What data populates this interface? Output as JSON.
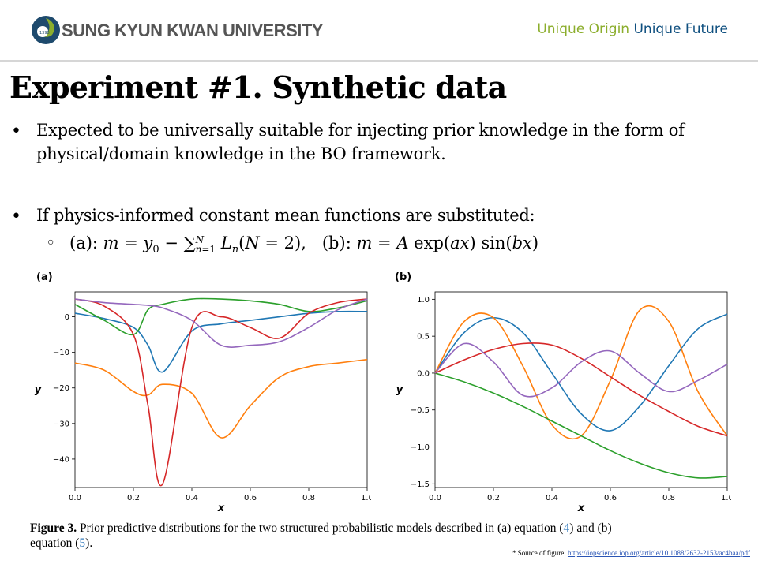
{
  "header": {
    "university": "SUNG KYUN KWAN UNIVERSITY",
    "logo_year": "1398",
    "slogan_part1": "Unique Origin",
    "slogan_part2": "Unique Future",
    "accent_green": "#8cae2d",
    "accent_blue": "#0e4f7f"
  },
  "title": "Experiment #1. Synthetic data",
  "bullets": [
    {
      "line1": "Expected to be universally suitable for injecting prior knowledge in the form of",
      "line2": "physical/domain knowledge in the BO framework."
    },
    {
      "line1": "If physics-informed constant mean functions are substituted:"
    }
  ],
  "sub_bullet": {
    "a_prefix": "(a): ",
    "b_prefix": "(b): "
  },
  "figure": {
    "panel_a_label": "(a)",
    "panel_b_label": "(b)",
    "caption_label": "Figure 3.",
    "caption_text_1": " Prior predictive distributions for the two structured probabilistic models described in (a) equation (",
    "caption_ref_4": "4",
    "caption_text_2": ") and (b)",
    "caption_text_3": "equation (",
    "caption_ref_5": "5",
    "caption_text_4": ")."
  },
  "source": {
    "prefix": "* Source of figure: ",
    "link": "https://iopscience.iop.org/article/10.1088/2632-2153/ac4baa/pdf"
  },
  "chart_data": [
    {
      "type": "line",
      "xlabel": "x",
      "ylabel": "y",
      "xlim": [
        0.0,
        1.0
      ],
      "ylim": [
        -48,
        7
      ],
      "xticks": [
        "0.0",
        "0.2",
        "0.4",
        "0.6",
        "0.8",
        "1.0"
      ],
      "yticks": [
        "0",
        "−10",
        "−20",
        "−30",
        "−40"
      ],
      "ytick_values": [
        0,
        -10,
        -20,
        -30,
        -40
      ],
      "x": [
        0.0,
        0.1,
        0.2,
        0.25,
        0.3,
        0.4,
        0.5,
        0.6,
        0.7,
        0.8,
        0.9,
        1.0
      ],
      "series": [
        {
          "color": "#1f77b4",
          "values": [
            1,
            -0.5,
            -3,
            -8,
            -15.5,
            -4,
            -2,
            -1,
            0,
            1,
            1.5,
            1.5
          ]
        },
        {
          "color": "#ff7f0e",
          "values": [
            -13,
            -15,
            -21,
            -22,
            -19,
            -21.5,
            -34,
            -25,
            -17,
            -14,
            -13,
            -12
          ]
        },
        {
          "color": "#2ca02c",
          "values": [
            3.5,
            -1,
            -5,
            2,
            3.5,
            5,
            5,
            4.5,
            3.5,
            1.5,
            2.5,
            4.5
          ]
        },
        {
          "color": "#d62728",
          "values": [
            5,
            3,
            -5,
            -25,
            -47,
            -3,
            0,
            -3,
            -6,
            1,
            4,
            5
          ]
        },
        {
          "color": "#9467bd",
          "values": [
            5,
            4,
            3.5,
            3.2,
            2.5,
            -1,
            -8,
            -8,
            -7,
            -3,
            2,
            5
          ]
        }
      ]
    },
    {
      "type": "line",
      "xlabel": "x",
      "ylabel": "y",
      "xlim": [
        0.0,
        1.0
      ],
      "ylim": [
        -1.55,
        1.1
      ],
      "xticks": [
        "0.0",
        "0.2",
        "0.4",
        "0.6",
        "0.8",
        "1.0"
      ],
      "yticks": [
        "1.0",
        "0.5",
        "0.0",
        "−0.5",
        "−1.0",
        "−1.5"
      ],
      "ytick_values": [
        1.0,
        0.5,
        0.0,
        -0.5,
        -1.0,
        -1.5
      ],
      "x": [
        0.0,
        0.1,
        0.2,
        0.3,
        0.4,
        0.5,
        0.6,
        0.7,
        0.8,
        0.9,
        1.0
      ],
      "series": [
        {
          "color": "#1f77b4",
          "values": [
            0,
            0.55,
            0.75,
            0.55,
            0.0,
            -0.55,
            -0.78,
            -0.45,
            0.1,
            0.6,
            0.8
          ]
        },
        {
          "color": "#ff7f0e",
          "values": [
            0,
            0.7,
            0.75,
            0.1,
            -0.7,
            -0.85,
            -0.1,
            0.85,
            0.7,
            -0.25,
            -0.85
          ]
        },
        {
          "color": "#2ca02c",
          "values": [
            0,
            -0.12,
            -0.27,
            -0.45,
            -0.65,
            -0.85,
            -1.05,
            -1.22,
            -1.35,
            -1.42,
            -1.4
          ]
        },
        {
          "color": "#d62728",
          "values": [
            0,
            0.18,
            0.32,
            0.4,
            0.38,
            0.2,
            -0.05,
            -0.3,
            -0.52,
            -0.72,
            -0.85
          ]
        },
        {
          "color": "#9467bd",
          "values": [
            0,
            0.4,
            0.15,
            -0.3,
            -0.2,
            0.15,
            0.3,
            0.0,
            -0.25,
            -0.1,
            0.12
          ]
        }
      ]
    }
  ]
}
